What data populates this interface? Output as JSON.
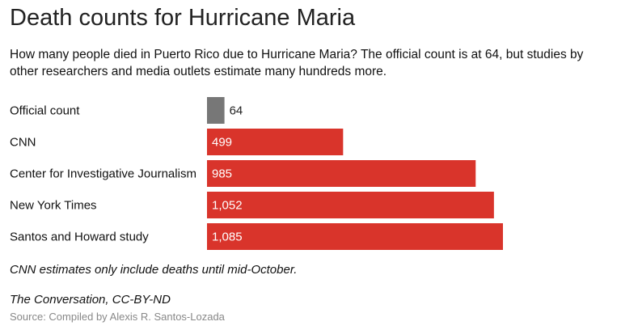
{
  "title": "Death counts for Hurricane Maria",
  "subtitle": "How many people died in Puerto Rico due to Hurricane Maria? The official count is at 64, but studies by other researchers and media outlets estimate many hundreds more.",
  "note": "CNN estimates only include deaths until mid-October.",
  "credit": "The Conversation, CC-BY-ND",
  "source": "Source: Compiled by Alexis R. Santos-Lozada",
  "chart_data": {
    "type": "bar",
    "orientation": "horizontal",
    "categories": [
      "Official count",
      "CNN",
      "Center for Investigative Journalism",
      "New York Times",
      "Santos and Howard study"
    ],
    "values": [
      64,
      499,
      985,
      1052,
      1085
    ],
    "value_labels": [
      "64",
      "499",
      "985",
      "1,052",
      "1,085"
    ],
    "colors": [
      "#777777",
      "#d9342b",
      "#d9342b",
      "#d9342b",
      "#d9342b"
    ],
    "grid": false
  }
}
